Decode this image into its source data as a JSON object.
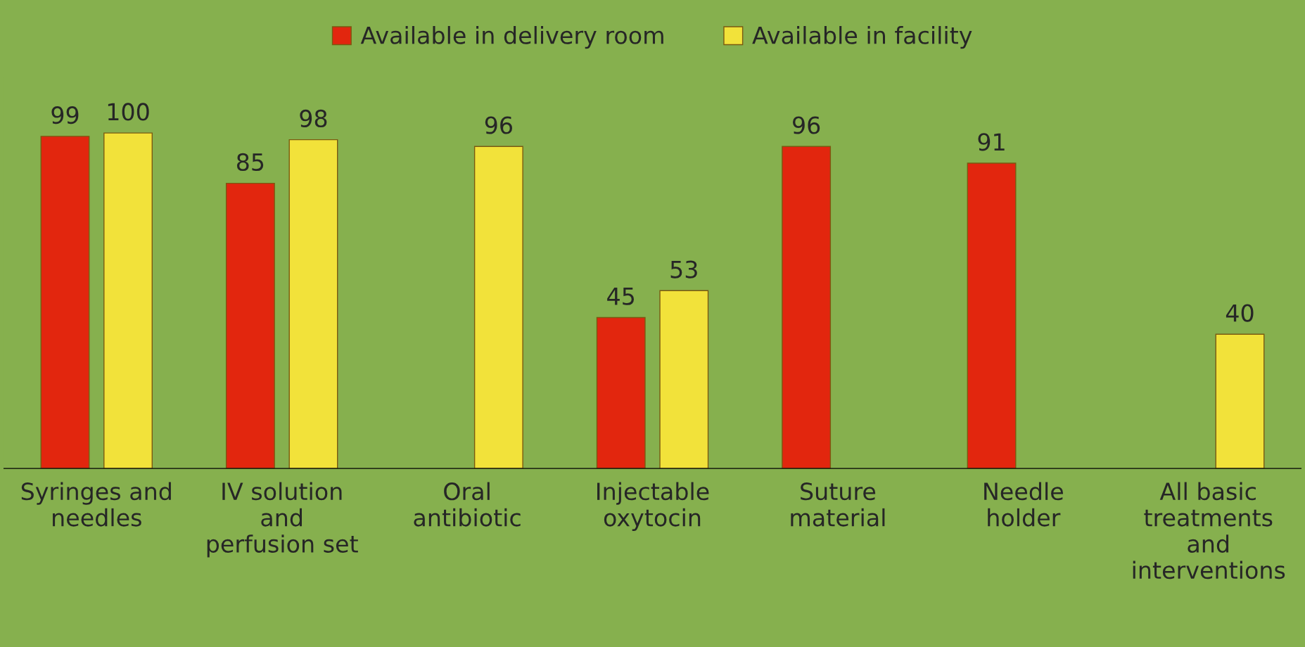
{
  "chart_data": {
    "type": "bar",
    "categories": [
      "Syringes and\nneedles",
      "IV solution\nand\nperfusion set",
      "Oral\nantibiotic",
      "Injectable\noxytocin",
      "Suture\nmaterial",
      "Needle\nholder",
      "All basic\ntreatments\nand\ninterventions"
    ],
    "series": [
      {
        "name": "Available in delivery room",
        "color": "#e2260e",
        "values": [
          99,
          85,
          null,
          45,
          96,
          91,
          null
        ]
      },
      {
        "name": "Available in facility",
        "color": "#f2e23a",
        "values": [
          100,
          98,
          96,
          53,
          null,
          null,
          40
        ]
      }
    ],
    "data_labels": true,
    "legend": "top",
    "grid": false
  }
}
